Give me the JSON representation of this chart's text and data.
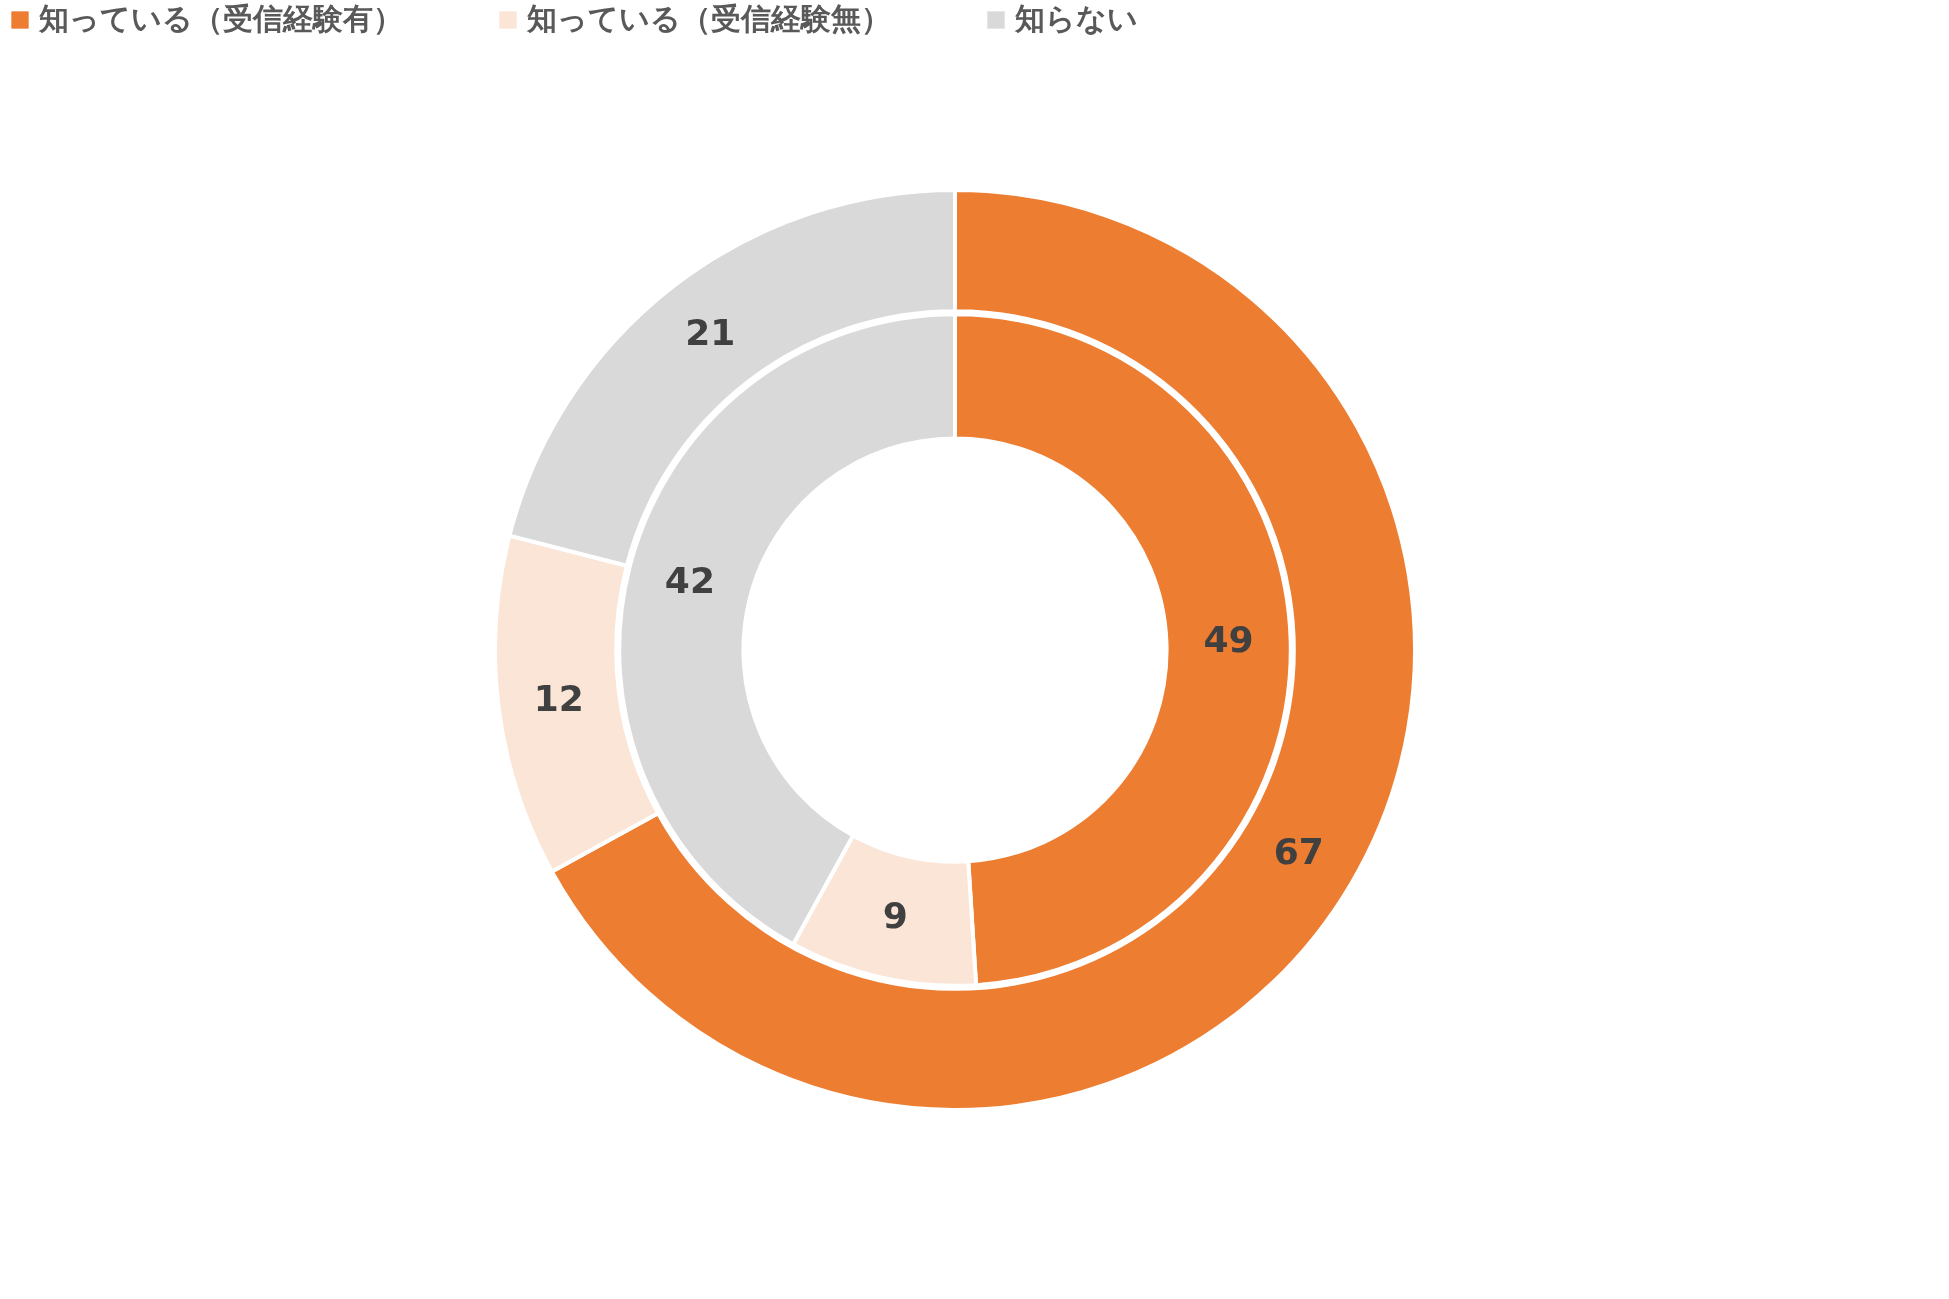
{
  "chart_data": {
    "type": "donut",
    "categories": [
      "知っている（受信経験有）",
      "知っている（受信経験無）",
      "知らない"
    ],
    "colors": [
      "#ed7d31",
      "#fbe5d6",
      "#d9d9d9"
    ],
    "series": [
      {
        "values": [
          49,
          9,
          42
        ]
      },
      {
        "values": [
          67,
          12,
          21
        ]
      }
    ],
    "data_labels": true,
    "legend": "top"
  }
}
